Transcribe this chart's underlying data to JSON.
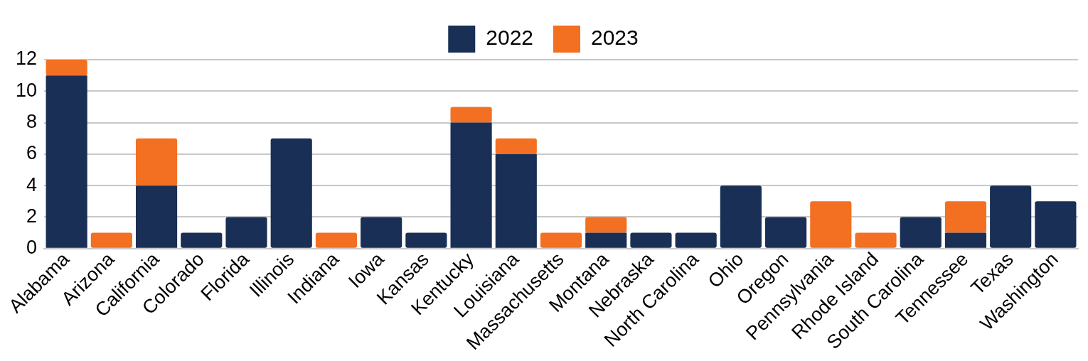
{
  "chart_data": {
    "type": "bar",
    "stacked": true,
    "categories": [
      "Alabama",
      "Arizona",
      "California",
      "Colorado",
      "Florida",
      "Illinois",
      "Indiana",
      "Iowa",
      "Kansas",
      "Kentucky",
      "Louisiana",
      "Massachusetts",
      "Montana",
      "Nebraska",
      "North Carolina",
      "Ohio",
      "Oregon",
      "Pennsylvania",
      "Rhode Island",
      "South Carolina",
      "Tennessee",
      "Texas",
      "Washington"
    ],
    "series": [
      {
        "name": "2022",
        "color": "#1a2f55",
        "values": [
          11,
          0,
          4,
          1,
          2,
          7,
          0,
          2,
          1,
          8,
          6,
          0,
          1,
          1,
          1,
          4,
          2,
          0,
          0,
          2,
          1,
          4,
          3
        ]
      },
      {
        "name": "2023",
        "color": "#f36f21",
        "values": [
          1,
          1,
          3,
          0,
          0,
          0,
          1,
          0,
          0,
          1,
          1,
          1,
          1,
          0,
          0,
          0,
          0,
          3,
          1,
          0,
          2,
          0,
          0
        ]
      }
    ],
    "ylim": [
      0,
      12
    ],
    "yticks": [
      0,
      2,
      4,
      6,
      8,
      10,
      12
    ],
    "grid": "y",
    "legend": "top"
  }
}
